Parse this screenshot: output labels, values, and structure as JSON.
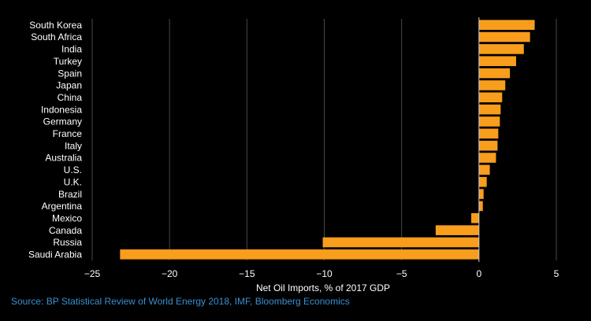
{
  "chart_data": {
    "type": "bar",
    "orientation": "horizontal",
    "title": "",
    "xlabel": "Net Oil Imports, % of 2017 GDP",
    "ylabel": "",
    "xlim": [
      -25,
      5
    ],
    "xticks": [
      -25,
      -20,
      -15,
      -10,
      -5,
      0,
      5
    ],
    "grid": "vertical",
    "categories": [
      "South Korea",
      "South Africa",
      "India",
      "Turkey",
      "Spain",
      "Japan",
      "China",
      "Indonesia",
      "Germany",
      "France",
      "Italy",
      "Australia",
      "U.S.",
      "U.K.",
      "Brazil",
      "Argentina",
      "Mexico",
      "Canada",
      "Russia",
      "Saudi Arabia"
    ],
    "values": [
      3.6,
      3.3,
      2.9,
      2.4,
      2.0,
      1.7,
      1.5,
      1.4,
      1.35,
      1.25,
      1.2,
      1.1,
      0.7,
      0.5,
      0.3,
      0.25,
      -0.5,
      -2.8,
      -10.1,
      -23.2
    ],
    "source": "Source: BP Statistical Review of World Energy 2018, IMF, Bloomberg Economics"
  },
  "colors": {
    "background": "#000000",
    "bar": "#f99d1c",
    "grid": "#4a4a4a",
    "text": "#ffffff",
    "source": "#3a8fd0"
  }
}
